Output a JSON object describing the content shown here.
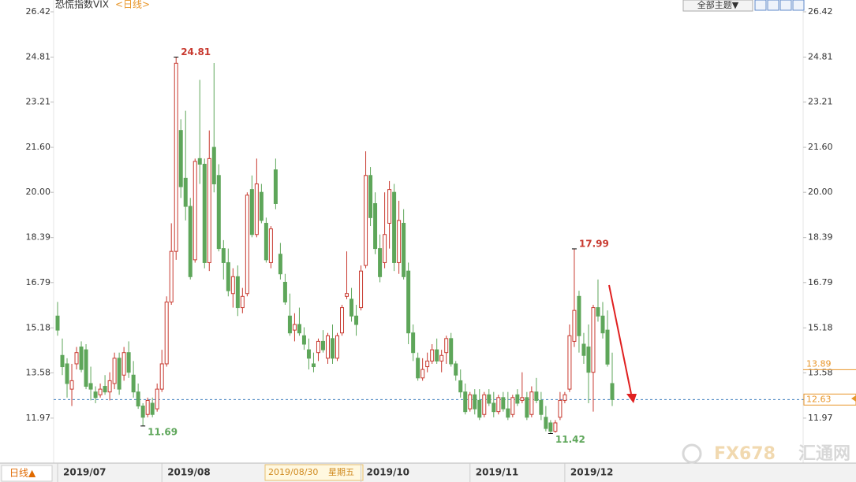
{
  "header": {
    "title": "恐慌指数VIX",
    "period": "<日线>",
    "theme_button": "全部主题▼"
  },
  "footer": {
    "period_button": "日线▲",
    "cursor_date": "2019/08/30",
    "cursor_weekday": "星期五",
    "watermark_brand": "FX678",
    "watermark_name": "汇通网"
  },
  "chart_data": {
    "type": "candlestick",
    "up_color": "#c8392f",
    "down_color": "#5ea65a",
    "categories": [
      "2019/07",
      null,
      null,
      null,
      null,
      null,
      null,
      null,
      null,
      null,
      null,
      null,
      null,
      null,
      null,
      null,
      null,
      null,
      null,
      null,
      null,
      null,
      "2019/08",
      null,
      null,
      null,
      null,
      null,
      null,
      null,
      null,
      null,
      null,
      null,
      null,
      null,
      null,
      null,
      null,
      null,
      null,
      null,
      null,
      null,
      null,
      null,
      null,
      null,
      null,
      null,
      null,
      null,
      null,
      null,
      null,
      null,
      null,
      null,
      null,
      null,
      null,
      null,
      null,
      null,
      "2019/10",
      null,
      null,
      null,
      null,
      null,
      null,
      null,
      null,
      null,
      null,
      null,
      null,
      null,
      null,
      null,
      null,
      null,
      null,
      null,
      null,
      null,
      null,
      "2019/11",
      null,
      null,
      null,
      null,
      null,
      null,
      null,
      null,
      null,
      null,
      null,
      null,
      null,
      null,
      null,
      null,
      null,
      null,
      null,
      "2019/12",
      null,
      null,
      null,
      null,
      null,
      null,
      null,
      null,
      null,
      null
    ],
    "ohlc": [
      [
        15.6,
        16.1,
        14.9,
        15.1
      ],
      [
        14.2,
        14.8,
        13.5,
        13.8
      ],
      [
        13.9,
        14.1,
        12.7,
        13.2
      ],
      [
        13.0,
        13.9,
        12.4,
        13.3
      ],
      [
        13.9,
        14.5,
        13.7,
        14.3
      ],
      [
        14.5,
        14.7,
        13.6,
        13.7
      ],
      [
        14.4,
        14.6,
        13.0,
        13.1
      ],
      [
        13.2,
        13.8,
        12.6,
        13.0
      ],
      [
        12.9,
        13.1,
        12.5,
        12.7
      ],
      [
        12.8,
        13.2,
        12.7,
        13.0
      ],
      [
        13.1,
        13.5,
        12.8,
        12.9
      ],
      [
        12.9,
        13.6,
        12.6,
        13.3
      ],
      [
        13.2,
        14.3,
        13.0,
        14.1
      ],
      [
        14.1,
        14.3,
        12.8,
        13.0
      ],
      [
        13.5,
        14.5,
        13.3,
        14.3
      ],
      [
        14.3,
        14.7,
        13.4,
        13.6
      ],
      [
        13.5,
        14.0,
        12.7,
        12.9
      ],
      [
        12.9,
        13.2,
        12.3,
        12.4
      ],
      [
        12.4,
        12.5,
        11.69,
        12.0
      ],
      [
        12.1,
        12.7,
        12.0,
        12.6
      ],
      [
        12.5,
        12.7,
        12.0,
        12.1
      ],
      [
        12.3,
        13.2,
        12.2,
        13.0
      ],
      [
        13.0,
        14.4,
        12.9,
        13.9
      ],
      [
        13.9,
        16.3,
        13.8,
        16.1
      ],
      [
        16.1,
        18.9,
        16.0,
        17.9
      ],
      [
        17.9,
        24.81,
        17.6,
        24.59
      ],
      [
        22.2,
        22.6,
        19.8,
        20.2
      ],
      [
        20.5,
        22.9,
        19.0,
        19.5
      ],
      [
        19.5,
        19.8,
        16.9,
        17.0
      ],
      [
        17.6,
        21.2,
        17.5,
        21.1
      ],
      [
        21.2,
        24.0,
        20.3,
        21.0
      ],
      [
        21.0,
        21.2,
        17.3,
        17.5
      ],
      [
        17.5,
        22.2,
        17.2,
        21.2
      ],
      [
        21.6,
        24.6,
        20.0,
        20.3
      ],
      [
        20.6,
        21.0,
        17.9,
        18.0
      ],
      [
        18.0,
        18.3,
        16.9,
        17.5
      ],
      [
        17.5,
        18.0,
        16.3,
        16.5
      ],
      [
        16.4,
        17.3,
        15.9,
        17.0
      ],
      [
        17.0,
        17.4,
        15.6,
        15.9
      ],
      [
        15.9,
        16.6,
        15.7,
        16.3
      ],
      [
        16.4,
        20.0,
        16.3,
        19.9
      ],
      [
        20.1,
        20.6,
        18.4,
        18.5
      ],
      [
        18.5,
        21.2,
        18.4,
        20.3
      ],
      [
        20.0,
        20.3,
        18.9,
        19.0
      ],
      [
        18.9,
        19.1,
        17.5,
        17.6
      ],
      [
        17.5,
        18.8,
        17.3,
        18.7
      ],
      [
        20.8,
        21.2,
        19.4,
        19.6
      ],
      [
        17.8,
        18.2,
        16.9,
        17.1
      ],
      [
        16.8,
        17.1,
        16.0,
        16.1
      ],
      [
        15.6,
        16.4,
        14.9,
        15.0
      ],
      [
        15.1,
        15.7,
        14.7,
        15.3
      ],
      [
        15.3,
        15.9,
        14.9,
        15.0
      ],
      [
        14.9,
        15.2,
        14.4,
        14.6
      ],
      [
        14.4,
        14.8,
        13.7,
        14.1
      ],
      [
        13.9,
        14.3,
        13.6,
        13.8
      ],
      [
        14.3,
        14.8,
        14.0,
        14.7
      ],
      [
        14.7,
        15.1,
        14.3,
        14.4
      ],
      [
        14.1,
        15.0,
        13.9,
        14.9
      ],
      [
        14.8,
        15.3,
        13.9,
        14.1
      ],
      [
        14.1,
        15.0,
        14.0,
        14.9
      ],
      [
        15.0,
        16.0,
        14.9,
        15.9
      ],
      [
        16.3,
        17.9,
        16.2,
        16.4
      ],
      [
        16.2,
        16.6,
        15.4,
        15.6
      ],
      [
        15.6,
        16.0,
        14.9,
        15.3
      ],
      [
        15.9,
        17.4,
        15.8,
        17.2
      ],
      [
        17.4,
        21.46,
        17.3,
        20.6
      ],
      [
        20.6,
        20.9,
        18.8,
        19.1
      ],
      [
        19.6,
        20.0,
        17.8,
        18.0
      ],
      [
        18.0,
        18.5,
        16.8,
        17.0
      ],
      [
        17.5,
        20.0,
        17.3,
        18.5
      ],
      [
        18.9,
        20.4,
        18.0,
        20.1
      ],
      [
        20.0,
        20.3,
        17.2,
        17.5
      ],
      [
        17.5,
        19.7,
        17.1,
        19.0
      ],
      [
        18.9,
        19.4,
        16.9,
        17.0
      ],
      [
        17.2,
        17.5,
        14.6,
        15.0
      ],
      [
        15.0,
        15.3,
        14.0,
        14.3
      ],
      [
        14.1,
        14.3,
        13.3,
        13.4
      ],
      [
        13.4,
        14.1,
        13.3,
        13.7
      ],
      [
        13.8,
        14.3,
        13.6,
        14.0
      ],
      [
        14.0,
        14.6,
        13.9,
        14.4
      ],
      [
        14.4,
        14.8,
        13.9,
        14.0
      ],
      [
        14.0,
        14.4,
        13.6,
        14.2
      ],
      [
        14.3,
        14.9,
        13.9,
        14.8
      ],
      [
        14.8,
        15.0,
        13.8,
        13.9
      ],
      [
        13.9,
        14.0,
        13.3,
        13.5
      ],
      [
        13.3,
        13.7,
        12.7,
        12.9
      ],
      [
        12.9,
        13.2,
        12.1,
        12.2
      ],
      [
        12.3,
        12.9,
        12.2,
        12.8
      ],
      [
        12.8,
        13.0,
        12.1,
        12.3
      ],
      [
        12.6,
        13.0,
        11.9,
        12.0
      ],
      [
        12.1,
        12.9,
        12.0,
        12.8
      ],
      [
        12.8,
        13.0,
        12.4,
        12.5
      ],
      [
        12.5,
        12.9,
        12.0,
        12.2
      ],
      [
        12.2,
        12.8,
        12.1,
        12.7
      ],
      [
        12.7,
        12.9,
        12.2,
        12.3
      ],
      [
        12.3,
        12.9,
        11.9,
        12.0
      ],
      [
        12.1,
        12.8,
        12.0,
        12.7
      ],
      [
        12.8,
        13.0,
        12.4,
        12.5
      ],
      [
        12.6,
        13.6,
        12.5,
        12.7
      ],
      [
        12.7,
        12.9,
        11.9,
        12.0
      ],
      [
        12.1,
        13.1,
        12.0,
        12.9
      ],
      [
        12.9,
        13.4,
        12.5,
        12.6
      ],
      [
        12.6,
        12.9,
        11.9,
        12.1
      ],
      [
        12.0,
        12.4,
        11.5,
        11.6
      ],
      [
        11.8,
        11.9,
        11.42,
        11.5
      ],
      [
        11.5,
        11.9,
        11.45,
        11.8
      ],
      [
        12.0,
        12.9,
        11.9,
        12.6
      ],
      [
        12.6,
        12.9,
        12.5,
        12.8
      ],
      [
        13.0,
        15.3,
        12.9,
        14.9
      ],
      [
        14.7,
        17.99,
        14.5,
        15.8
      ],
      [
        16.3,
        16.5,
        14.3,
        14.9
      ],
      [
        14.6,
        15.0,
        13.9,
        14.2
      ],
      [
        14.5,
        15.3,
        12.5,
        13.6
      ],
      [
        13.6,
        16.0,
        12.2,
        15.9
      ],
      [
        15.9,
        16.9,
        15.4,
        15.6
      ],
      [
        15.6,
        16.1,
        14.8,
        15.0
      ],
      [
        15.1,
        15.8,
        13.8,
        13.89
      ],
      [
        13.2,
        14.3,
        12.4,
        12.63
      ]
    ],
    "annotations": [
      24.81,
      17.99,
      11.69,
      11.42
    ],
    "prev_close": 13.89,
    "last_price": 12.63,
    "ylim": [
      10.37,
      26.7
    ],
    "yticks": [
      11.97,
      13.58,
      15.18,
      16.79,
      18.39,
      {
        "value": 20,
        "label": "20.00"
      },
      {
        "value": 21.6,
        "label": "21.60"
      },
      23.21,
      24.81,
      26.42
    ]
  }
}
